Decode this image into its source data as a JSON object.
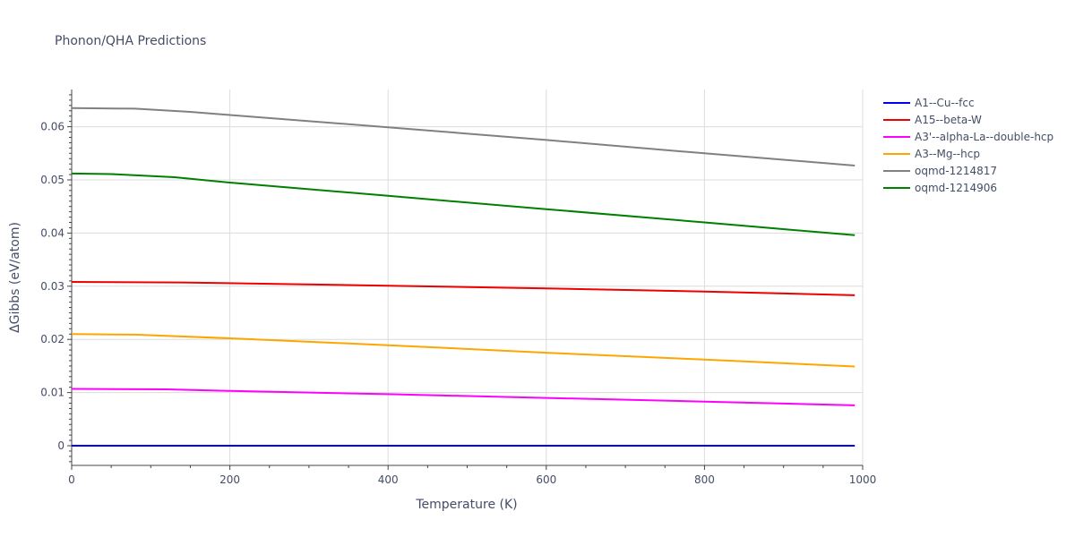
{
  "chart_data": {
    "type": "line",
    "title": "Phonon/QHA Predictions",
    "xlabel": "Temperature (K)",
    "ylabel": "ΔGibbs (eV/atom)",
    "xlim": [
      0,
      1000
    ],
    "ylim": [
      -0.0037,
      0.067
    ],
    "xticks": [
      0,
      200,
      400,
      600,
      800,
      1000
    ],
    "xtick_labels": [
      "0",
      "200",
      "400",
      "600",
      "800",
      "1000"
    ],
    "yticks": [
      0,
      0.01,
      0.02,
      0.03,
      0.04,
      0.05,
      0.06
    ],
    "ytick_labels": [
      "0",
      "0.01",
      "0.02",
      "0.03",
      "0.04",
      "0.05",
      "0.06"
    ],
    "grid": true,
    "legend_position": "right",
    "series": [
      {
        "name": "A1--Cu--fcc",
        "color": "#0000ee",
        "x": [
          0,
          990
        ],
        "y": [
          0.0,
          0.0
        ]
      },
      {
        "name": "A15--beta-W",
        "color": "#ee0000",
        "x": [
          0,
          140,
          400,
          600,
          800,
          990
        ],
        "y": [
          0.0308,
          0.0307,
          0.0301,
          0.0296,
          0.029,
          0.0283
        ]
      },
      {
        "name": "A3'--alpha-La--double-hcp",
        "color": "#ff00ff",
        "x": [
          0,
          120,
          200,
          400,
          600,
          800,
          990
        ],
        "y": [
          0.0107,
          0.0106,
          0.0103,
          0.0097,
          0.009,
          0.0083,
          0.0076
        ]
      },
      {
        "name": "A3--Mg--hcp",
        "color": "#ffa500",
        "x": [
          0,
          80,
          200,
          400,
          600,
          800,
          990
        ],
        "y": [
          0.021,
          0.0209,
          0.0202,
          0.0189,
          0.0175,
          0.0162,
          0.0149
        ]
      },
      {
        "name": "oqmd-1214817",
        "color": "#808080",
        "x": [
          0,
          80,
          150,
          200,
          400,
          600,
          800,
          990
        ],
        "y": [
          0.0635,
          0.0634,
          0.0628,
          0.0622,
          0.0599,
          0.0575,
          0.055,
          0.0527
        ]
      },
      {
        "name": "oqmd-1214906",
        "color": "#008000",
        "x": [
          0,
          50,
          130,
          200,
          400,
          600,
          800,
          990
        ],
        "y": [
          0.0512,
          0.0511,
          0.0505,
          0.0495,
          0.047,
          0.0445,
          0.042,
          0.0396
        ]
      }
    ]
  }
}
